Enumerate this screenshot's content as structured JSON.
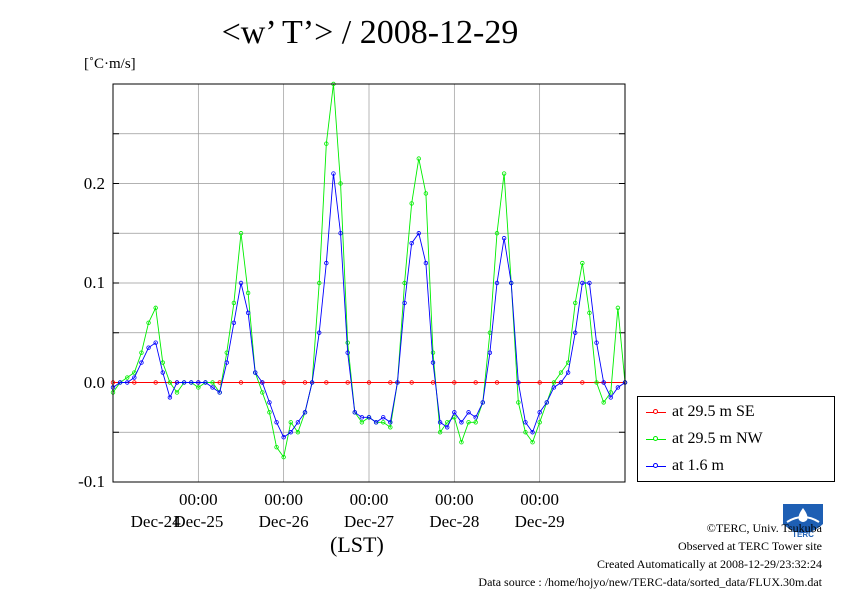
{
  "chart_data": {
    "type": "line",
    "title": "<w’ T’> / 2008-12-29",
    "ylabel": "[˚C·m/s]",
    "xlabel": "(LST)",
    "ylim": [
      -0.1,
      0.3
    ],
    "xlim": [
      0,
      144
    ],
    "yticks": [
      {
        "value": 0.2,
        "label": "0.2"
      },
      {
        "value": 0.1,
        "label": "0.1"
      },
      {
        "value": 0.0,
        "label": "0.0"
      },
      {
        "value": -0.1,
        "label": "-0.1"
      }
    ],
    "xticks": [
      {
        "value": 24,
        "time": "00:00",
        "date": "Dec-25"
      },
      {
        "value": 48,
        "time": "00:00",
        "date": "Dec-26"
      },
      {
        "value": 72,
        "time": "00:00",
        "date": "Dec-27"
      },
      {
        "value": 96,
        "time": "00:00",
        "date": "Dec-28"
      },
      {
        "value": 120,
        "time": "00:00",
        "date": "Dec-29"
      }
    ],
    "first_date": {
      "value": 12,
      "label": "Dec-24"
    },
    "grid": true,
    "legend_position": "right",
    "series": [
      {
        "name": "at 29.5 m SE",
        "color": "#ff0000",
        "x": [
          0,
          6,
          12,
          18,
          24,
          30,
          36,
          42,
          48,
          54,
          60,
          66,
          72,
          78,
          84,
          90,
          96,
          102,
          108,
          114,
          120,
          126,
          132,
          138,
          144
        ],
        "values": [
          0,
          0,
          0,
          0,
          0,
          0,
          0,
          0,
          0,
          0,
          0,
          0,
          0,
          0,
          0,
          0,
          0,
          0,
          0,
          0,
          0,
          0,
          0,
          0,
          0
        ]
      },
      {
        "name": "at 29.5 m NW",
        "color": "#00ee00",
        "x": [
          0,
          2,
          4,
          6,
          8,
          10,
          12,
          14,
          16,
          18,
          20,
          22,
          24,
          26,
          28,
          30,
          32,
          34,
          36,
          38,
          40,
          42,
          44,
          46,
          48,
          50,
          52,
          54,
          56,
          58,
          60,
          62,
          64,
          66,
          68,
          70,
          72,
          74,
          76,
          78,
          80,
          82,
          84,
          86,
          88,
          90,
          92,
          94,
          96,
          98,
          100,
          102,
          104,
          106,
          108,
          110,
          112,
          114,
          116,
          118,
          120,
          122,
          124,
          126,
          128,
          130,
          132,
          134,
          136,
          138,
          140,
          142,
          144
        ],
        "values": [
          -0.01,
          0.0,
          0.005,
          0.01,
          0.03,
          0.06,
          0.075,
          0.02,
          0.0,
          -0.01,
          0.0,
          0.0,
          -0.005,
          0.0,
          0.0,
          -0.01,
          0.03,
          0.08,
          0.15,
          0.09,
          0.01,
          -0.01,
          -0.03,
          -0.065,
          -0.075,
          -0.04,
          -0.05,
          -0.03,
          0.0,
          0.1,
          0.24,
          0.3,
          0.2,
          0.04,
          -0.03,
          -0.04,
          -0.035,
          -0.04,
          -0.04,
          -0.045,
          0.0,
          0.1,
          0.18,
          0.225,
          0.19,
          0.03,
          -0.05,
          -0.04,
          -0.035,
          -0.06,
          -0.04,
          -0.04,
          -0.02,
          0.05,
          0.15,
          0.21,
          0.1,
          -0.02,
          -0.05,
          -0.06,
          -0.04,
          -0.02,
          0.0,
          0.01,
          0.02,
          0.08,
          0.12,
          0.07,
          0.0,
          -0.02,
          -0.01,
          0.075,
          0.0
        ]
      },
      {
        "name": "at 1.6 m",
        "color": "#0000ff",
        "x": [
          0,
          2,
          4,
          6,
          8,
          10,
          12,
          14,
          16,
          18,
          20,
          22,
          24,
          26,
          28,
          30,
          32,
          34,
          36,
          38,
          40,
          42,
          44,
          46,
          48,
          50,
          52,
          54,
          56,
          58,
          60,
          62,
          64,
          66,
          68,
          70,
          72,
          74,
          76,
          78,
          80,
          82,
          84,
          86,
          88,
          90,
          92,
          94,
          96,
          98,
          100,
          102,
          104,
          106,
          108,
          110,
          112,
          114,
          116,
          118,
          120,
          122,
          124,
          126,
          128,
          130,
          132,
          134,
          136,
          138,
          140,
          142,
          144
        ],
        "values": [
          -0.005,
          0.0,
          0.0,
          0.005,
          0.02,
          0.035,
          0.04,
          0.01,
          -0.015,
          0.0,
          0.0,
          0.0,
          0.0,
          0.0,
          -0.005,
          -0.01,
          0.02,
          0.06,
          0.1,
          0.07,
          0.01,
          0.0,
          -0.02,
          -0.04,
          -0.055,
          -0.05,
          -0.04,
          -0.03,
          0.0,
          0.05,
          0.12,
          0.21,
          0.15,
          0.03,
          -0.03,
          -0.035,
          -0.035,
          -0.04,
          -0.035,
          -0.04,
          0.0,
          0.08,
          0.14,
          0.15,
          0.12,
          0.02,
          -0.04,
          -0.045,
          -0.03,
          -0.04,
          -0.03,
          -0.035,
          -0.02,
          0.03,
          0.1,
          0.145,
          0.1,
          0.0,
          -0.04,
          -0.05,
          -0.03,
          -0.02,
          -0.005,
          0.0,
          0.01,
          0.05,
          0.1,
          0.1,
          0.04,
          0.0,
          -0.015,
          -0.005,
          0.0
        ]
      }
    ]
  },
  "footer": {
    "copyright": "©TERC, Univ. Tsukuba",
    "observed": "Observed at TERC Tower site",
    "created": "Created Automatically at 2008-12-29/23:32:24",
    "source": "Data source : /home/hojyo/new/TERC-data/sorted_data/FLUX.30m.dat"
  },
  "logo": {
    "text": "TERC",
    "color": "#1e5fb4",
    "icon": "terc-logo"
  }
}
